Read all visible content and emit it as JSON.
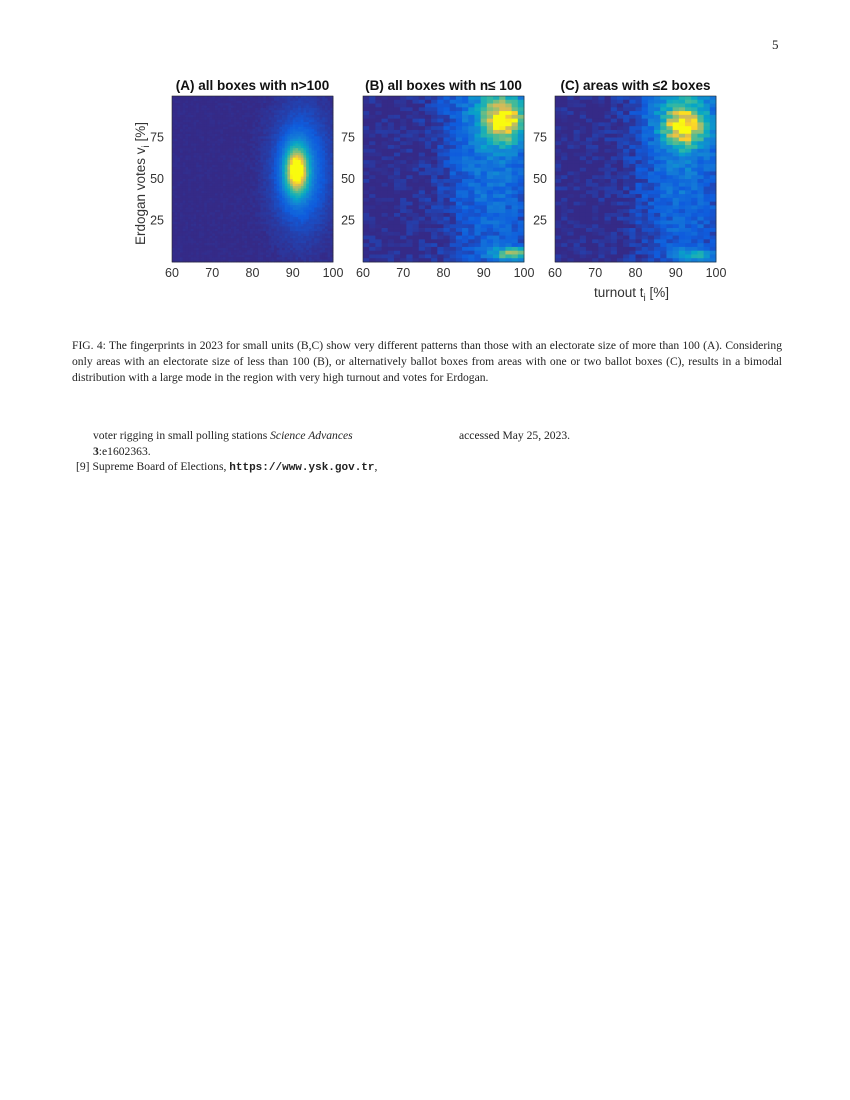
{
  "page_number": "5",
  "figure": {
    "caption": "FIG. 4: The fingerprints in 2023 for small units (B,C) show very different patterns than those with an electorate size of more than 100 (A). Considering only areas with an electorate size of less than 100 (B), or alternatively ballot boxes from areas with one or two ballot boxes (C), results in a bimodal distribution with a large mode in the region with very high turnout and votes for Erdogan."
  },
  "chart_data": [
    {
      "type": "heatmap",
      "title": "(A) all boxes with n>100",
      "ylabel": "Erdogan votes v_i [%]",
      "xlabel": "",
      "x_ticks": [
        "60",
        "70",
        "80",
        "90",
        "100"
      ],
      "y_ticks": [
        "25",
        "50",
        "75"
      ],
      "xlim": [
        60,
        100
      ],
      "ylim": [
        0,
        100
      ],
      "colormap": "parula",
      "modes": [
        {
          "turnout": 91,
          "votes": 55,
          "intensity": 1.0
        }
      ]
    },
    {
      "type": "heatmap",
      "title": "(B) all boxes with n≤ 100",
      "xlabel": "",
      "x_ticks": [
        "60",
        "70",
        "80",
        "90",
        "100"
      ],
      "y_ticks": [
        "25",
        "50",
        "75"
      ],
      "xlim": [
        60,
        100
      ],
      "ylim": [
        0,
        100
      ],
      "colormap": "parula",
      "modes": [
        {
          "turnout": 95,
          "votes": 85,
          "intensity": 0.9
        },
        {
          "turnout": 97,
          "votes": 5,
          "intensity": 0.6
        }
      ]
    },
    {
      "type": "heatmap",
      "title": "(C) areas with ≤2 boxes",
      "xlabel": "turnout t_i [%]",
      "x_ticks": [
        "60",
        "70",
        "80",
        "90",
        "100"
      ],
      "y_ticks": [
        "25",
        "50",
        "75"
      ],
      "xlim": [
        60,
        100
      ],
      "ylim": [
        0,
        100
      ],
      "colormap": "parula",
      "modes": [
        {
          "turnout": 92,
          "votes": 82,
          "intensity": 0.85
        },
        {
          "turnout": 95,
          "votes": 4,
          "intensity": 0.35
        }
      ]
    }
  ],
  "references": {
    "ref8_cont_line1_text": "voter rigging in small polling stations ",
    "ref8_journal": "Science Advances",
    "ref8_volume": "3",
    "ref8_pages": ":e1602363.",
    "ref9_num": "[9]",
    "ref9_text": "Supreme Board of Elections, ",
    "ref9_url": "https://www.ysk.gov.tr",
    "ref9_comma": ",",
    "ref9_accessed": "accessed May 25, 2023."
  }
}
